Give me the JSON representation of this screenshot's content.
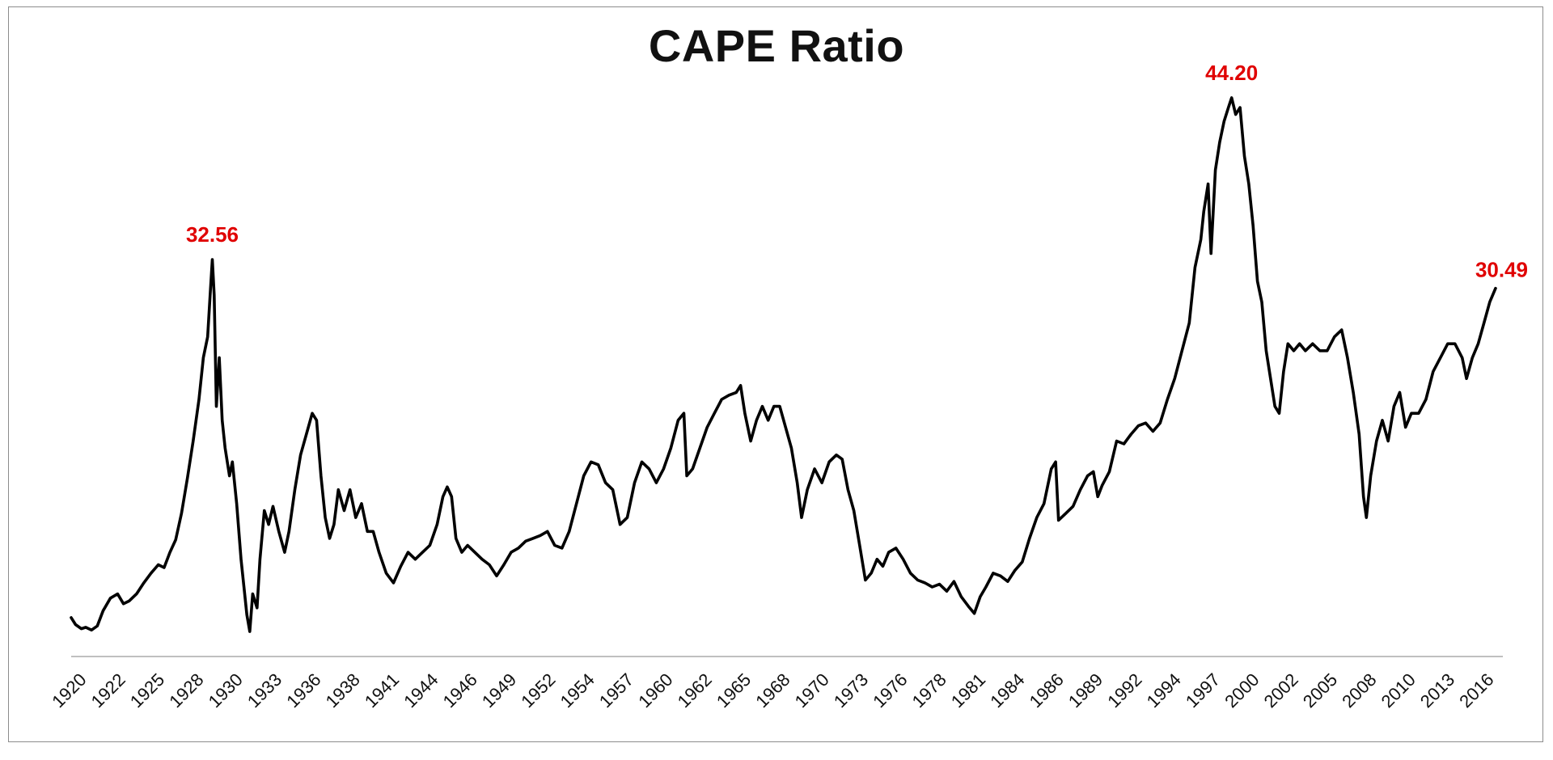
{
  "chart_data": {
    "type": "line",
    "title": "CAPE Ratio",
    "xlabel": "",
    "ylabel": "",
    "ylim": [
      4,
      46
    ],
    "xlim": [
      1920,
      2018.6
    ],
    "grid": false,
    "legend": "none",
    "x_tick_labels": [
      "1920",
      "1922",
      "1925",
      "1928",
      "1930",
      "1933",
      "1936",
      "1938",
      "1941",
      "1944",
      "1946",
      "1949",
      "1952",
      "1954",
      "1957",
      "1960",
      "1962",
      "1965",
      "1968",
      "1970",
      "1973",
      "1976",
      "1978",
      "1981",
      "1984",
      "1986",
      "1989",
      "1992",
      "1994",
      "1997",
      "2000",
      "2002",
      "2005",
      "2008",
      "2010",
      "2013",
      "2016"
    ],
    "series": [
      {
        "color": "#000000",
        "points": [
          [
            1920.0,
            6.8
          ],
          [
            1920.3,
            6.3
          ],
          [
            1920.7,
            6.0
          ],
          [
            1921.0,
            6.1
          ],
          [
            1921.4,
            5.9
          ],
          [
            1921.8,
            6.2
          ],
          [
            1922.2,
            7.3
          ],
          [
            1922.7,
            8.2
          ],
          [
            1923.2,
            8.5
          ],
          [
            1923.6,
            7.8
          ],
          [
            1924.0,
            8.0
          ],
          [
            1924.5,
            8.5
          ],
          [
            1925.0,
            9.3
          ],
          [
            1925.5,
            10.0
          ],
          [
            1926.0,
            10.6
          ],
          [
            1926.4,
            10.4
          ],
          [
            1926.8,
            11.5
          ],
          [
            1927.2,
            12.4
          ],
          [
            1927.6,
            14.3
          ],
          [
            1928.0,
            16.8
          ],
          [
            1928.4,
            19.5
          ],
          [
            1928.8,
            22.5
          ],
          [
            1929.1,
            25.5
          ],
          [
            1929.4,
            27.0
          ],
          [
            1929.6,
            30.5
          ],
          [
            1929.72,
            32.56
          ],
          [
            1929.85,
            30.0
          ],
          [
            1930.0,
            22.0
          ],
          [
            1930.2,
            25.5
          ],
          [
            1930.4,
            21.0
          ],
          [
            1930.6,
            19.0
          ],
          [
            1930.9,
            17.0
          ],
          [
            1931.1,
            18.0
          ],
          [
            1931.4,
            15.0
          ],
          [
            1931.7,
            11.0
          ],
          [
            1931.9,
            9.0
          ],
          [
            1932.1,
            7.0
          ],
          [
            1932.3,
            5.8
          ],
          [
            1932.5,
            8.5
          ],
          [
            1932.8,
            7.5
          ],
          [
            1933.0,
            11.0
          ],
          [
            1933.3,
            14.5
          ],
          [
            1933.6,
            13.5
          ],
          [
            1933.9,
            14.8
          ],
          [
            1934.3,
            13.0
          ],
          [
            1934.7,
            11.5
          ],
          [
            1935.0,
            13.0
          ],
          [
            1935.4,
            16.0
          ],
          [
            1935.8,
            18.5
          ],
          [
            1936.2,
            20.0
          ],
          [
            1936.6,
            21.5
          ],
          [
            1936.9,
            21.0
          ],
          [
            1937.2,
            17.0
          ],
          [
            1937.5,
            14.0
          ],
          [
            1937.8,
            12.5
          ],
          [
            1938.1,
            13.5
          ],
          [
            1938.4,
            16.0
          ],
          [
            1938.8,
            14.5
          ],
          [
            1939.2,
            16.0
          ],
          [
            1939.6,
            14.0
          ],
          [
            1940.0,
            15.0
          ],
          [
            1940.4,
            13.0
          ],
          [
            1940.8,
            13.0
          ],
          [
            1941.2,
            11.5
          ],
          [
            1941.7,
            10.0
          ],
          [
            1942.2,
            9.3
          ],
          [
            1942.7,
            10.5
          ],
          [
            1943.2,
            11.5
          ],
          [
            1943.7,
            11.0
          ],
          [
            1944.2,
            11.5
          ],
          [
            1944.7,
            12.0
          ],
          [
            1945.2,
            13.5
          ],
          [
            1945.6,
            15.5
          ],
          [
            1945.9,
            16.2
          ],
          [
            1946.2,
            15.5
          ],
          [
            1946.5,
            12.5
          ],
          [
            1946.9,
            11.5
          ],
          [
            1947.3,
            12.0
          ],
          [
            1947.8,
            11.5
          ],
          [
            1948.3,
            11.0
          ],
          [
            1948.8,
            10.6
          ],
          [
            1949.3,
            9.8
          ],
          [
            1949.8,
            10.6
          ],
          [
            1950.3,
            11.5
          ],
          [
            1950.8,
            11.8
          ],
          [
            1951.3,
            12.3
          ],
          [
            1951.8,
            12.5
          ],
          [
            1952.3,
            12.7
          ],
          [
            1952.8,
            13.0
          ],
          [
            1953.3,
            12.0
          ],
          [
            1953.8,
            11.8
          ],
          [
            1954.3,
            13.0
          ],
          [
            1954.8,
            15.0
          ],
          [
            1955.3,
            17.0
          ],
          [
            1955.8,
            18.0
          ],
          [
            1956.3,
            17.8
          ],
          [
            1956.8,
            16.5
          ],
          [
            1957.3,
            16.0
          ],
          [
            1957.8,
            13.5
          ],
          [
            1958.3,
            14.0
          ],
          [
            1958.8,
            16.5
          ],
          [
            1959.3,
            18.0
          ],
          [
            1959.8,
            17.5
          ],
          [
            1960.3,
            16.5
          ],
          [
            1960.8,
            17.5
          ],
          [
            1961.3,
            19.0
          ],
          [
            1961.8,
            21.0
          ],
          [
            1962.2,
            21.5
          ],
          [
            1962.4,
            17.0
          ],
          [
            1962.8,
            17.5
          ],
          [
            1963.3,
            19.0
          ],
          [
            1963.8,
            20.5
          ],
          [
            1964.3,
            21.5
          ],
          [
            1964.8,
            22.5
          ],
          [
            1965.3,
            22.8
          ],
          [
            1965.8,
            23.0
          ],
          [
            1966.1,
            23.5
          ],
          [
            1966.4,
            21.5
          ],
          [
            1966.8,
            19.5
          ],
          [
            1967.2,
            21.0
          ],
          [
            1967.6,
            22.0
          ],
          [
            1968.0,
            21.0
          ],
          [
            1968.4,
            22.0
          ],
          [
            1968.8,
            22.0
          ],
          [
            1969.2,
            20.5
          ],
          [
            1969.6,
            19.0
          ],
          [
            1970.0,
            16.5
          ],
          [
            1970.3,
            14.0
          ],
          [
            1970.7,
            16.0
          ],
          [
            1971.2,
            17.5
          ],
          [
            1971.7,
            16.5
          ],
          [
            1972.2,
            18.0
          ],
          [
            1972.7,
            18.5
          ],
          [
            1973.1,
            18.2
          ],
          [
            1973.5,
            16.0
          ],
          [
            1973.9,
            14.5
          ],
          [
            1974.3,
            12.0
          ],
          [
            1974.7,
            9.5
          ],
          [
            1975.1,
            10.0
          ],
          [
            1975.5,
            11.0
          ],
          [
            1975.9,
            10.5
          ],
          [
            1976.3,
            11.5
          ],
          [
            1976.8,
            11.8
          ],
          [
            1977.3,
            11.0
          ],
          [
            1977.8,
            10.0
          ],
          [
            1978.3,
            9.5
          ],
          [
            1978.8,
            9.3
          ],
          [
            1979.3,
            9.0
          ],
          [
            1979.8,
            9.2
          ],
          [
            1980.3,
            8.7
          ],
          [
            1980.8,
            9.4
          ],
          [
            1981.3,
            8.3
          ],
          [
            1981.8,
            7.6
          ],
          [
            1982.2,
            7.1
          ],
          [
            1982.6,
            8.3
          ],
          [
            1983.0,
            9.0
          ],
          [
            1983.5,
            10.0
          ],
          [
            1984.0,
            9.8
          ],
          [
            1984.5,
            9.4
          ],
          [
            1985.0,
            10.2
          ],
          [
            1985.5,
            10.8
          ],
          [
            1986.0,
            12.5
          ],
          [
            1986.5,
            14.0
          ],
          [
            1987.0,
            15.0
          ],
          [
            1987.5,
            17.5
          ],
          [
            1987.8,
            18.0
          ],
          [
            1988.0,
            13.8
          ],
          [
            1988.5,
            14.3
          ],
          [
            1989.0,
            14.8
          ],
          [
            1989.5,
            16.0
          ],
          [
            1990.0,
            17.0
          ],
          [
            1990.4,
            17.3
          ],
          [
            1990.7,
            15.5
          ],
          [
            1991.0,
            16.3
          ],
          [
            1991.5,
            17.3
          ],
          [
            1992.0,
            19.5
          ],
          [
            1992.5,
            19.3
          ],
          [
            1993.0,
            20.0
          ],
          [
            1993.5,
            20.6
          ],
          [
            1994.0,
            20.8
          ],
          [
            1994.5,
            20.2
          ],
          [
            1995.0,
            20.8
          ],
          [
            1995.5,
            22.5
          ],
          [
            1996.0,
            24.0
          ],
          [
            1996.5,
            26.0
          ],
          [
            1997.0,
            28.0
          ],
          [
            1997.4,
            32.0
          ],
          [
            1997.8,
            34.0
          ],
          [
            1998.0,
            36.0
          ],
          [
            1998.3,
            38.0
          ],
          [
            1998.5,
            33.0
          ],
          [
            1998.8,
            39.0
          ],
          [
            1999.1,
            41.0
          ],
          [
            1999.4,
            42.5
          ],
          [
            1999.7,
            43.5
          ],
          [
            1999.92,
            44.2
          ],
          [
            2000.2,
            43.0
          ],
          [
            2000.5,
            43.5
          ],
          [
            2000.8,
            40.0
          ],
          [
            2001.1,
            38.0
          ],
          [
            2001.4,
            35.0
          ],
          [
            2001.7,
            31.0
          ],
          [
            2002.0,
            29.5
          ],
          [
            2002.3,
            26.0
          ],
          [
            2002.6,
            24.0
          ],
          [
            2002.9,
            22.0
          ],
          [
            2003.2,
            21.5
          ],
          [
            2003.5,
            24.5
          ],
          [
            2003.8,
            26.5
          ],
          [
            2004.2,
            26.0
          ],
          [
            2004.6,
            26.5
          ],
          [
            2005.0,
            26.0
          ],
          [
            2005.5,
            26.5
          ],
          [
            2006.0,
            26.0
          ],
          [
            2006.5,
            26.0
          ],
          [
            2007.0,
            27.0
          ],
          [
            2007.5,
            27.5
          ],
          [
            2007.9,
            25.5
          ],
          [
            2008.3,
            23.0
          ],
          [
            2008.7,
            20.0
          ],
          [
            2009.0,
            15.5
          ],
          [
            2009.2,
            14.0
          ],
          [
            2009.5,
            17.0
          ],
          [
            2009.9,
            19.5
          ],
          [
            2010.3,
            21.0
          ],
          [
            2010.7,
            19.5
          ],
          [
            2011.1,
            22.0
          ],
          [
            2011.5,
            23.0
          ],
          [
            2011.9,
            20.5
          ],
          [
            2012.3,
            21.5
          ],
          [
            2012.8,
            21.5
          ],
          [
            2013.3,
            22.5
          ],
          [
            2013.8,
            24.5
          ],
          [
            2014.3,
            25.5
          ],
          [
            2014.8,
            26.5
          ],
          [
            2015.3,
            26.5
          ],
          [
            2015.8,
            25.5
          ],
          [
            2016.1,
            24.0
          ],
          [
            2016.5,
            25.5
          ],
          [
            2016.9,
            26.5
          ],
          [
            2017.3,
            28.0
          ],
          [
            2017.7,
            29.5
          ],
          [
            2018.1,
            30.49
          ]
        ]
      }
    ],
    "annotations": [
      {
        "x": 1929.72,
        "y": 32.56,
        "text": "32.56",
        "color": "#e00000"
      },
      {
        "x": 1999.92,
        "y": 44.2,
        "text": "44.20",
        "color": "#e00000"
      },
      {
        "x": 2018.1,
        "y": 30.49,
        "text": "30.49",
        "color": "#e00000"
      }
    ]
  }
}
